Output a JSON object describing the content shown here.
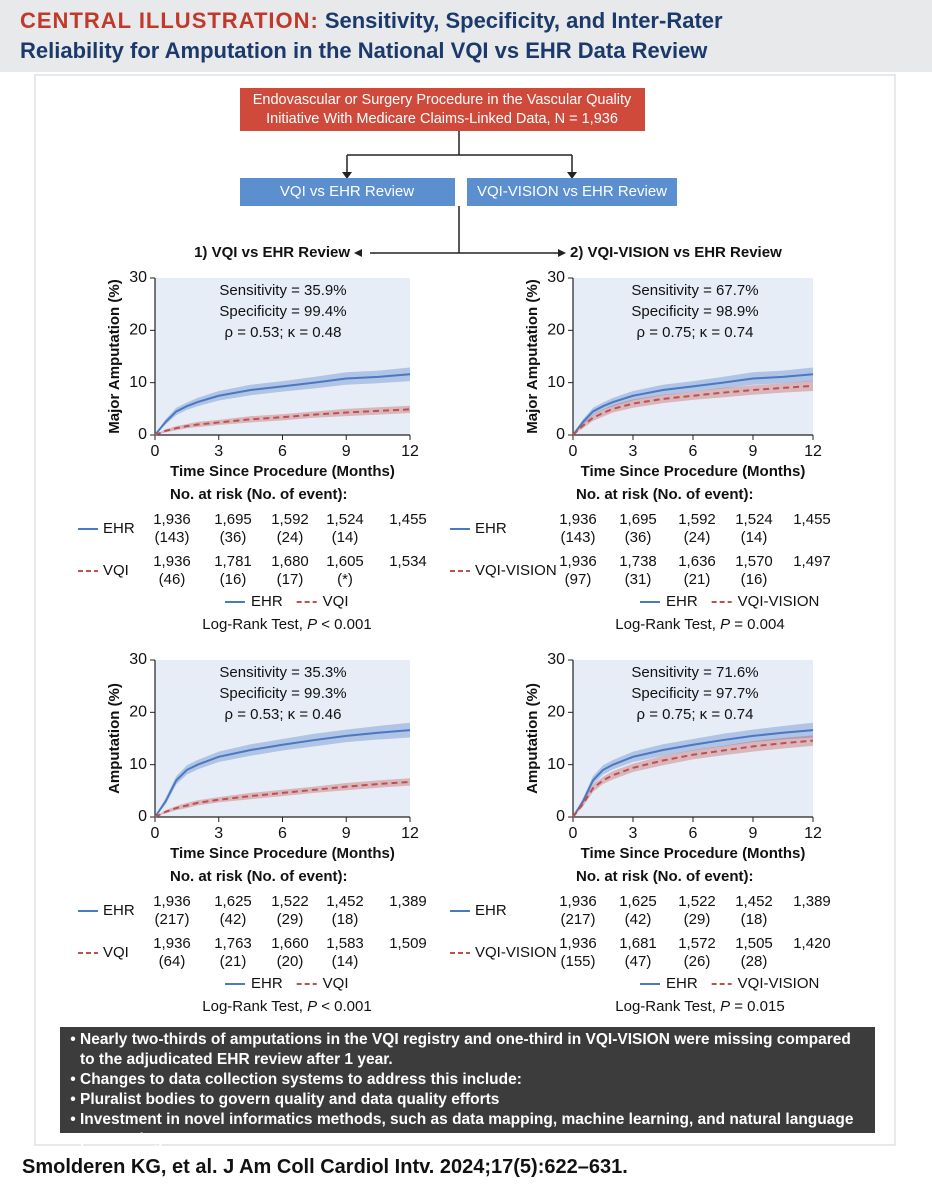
{
  "header": {
    "label": "CENTRAL ILLUSTRATION:",
    "title_lines": [
      "Sensitivity, Specificity, and Inter-Rater",
      "Reliability for Amputation in the National VQI vs EHR Data Review"
    ]
  },
  "flow": {
    "top_lines": [
      "Endovascular or Surgery Procedure in the Vascular Quality",
      "Initiative With Medicare Claims-Linked Data, N = 1,936"
    ],
    "boxes": [
      "VQI vs EHR Review",
      "VQI-VISION vs EHR Review"
    ],
    "sections": [
      "1) VQI vs EHR Review",
      "2) VQI-VISION vs EHR Review"
    ]
  },
  "chart_data": [
    {
      "type": "line",
      "y_label": "Major Amputation (%)",
      "x_label": "Time Since Procedure (Months)",
      "annotations": [
        "Sensitivity = 35.9%",
        "Specificity = 99.4%",
        "ρ = 0.53; κ = 0.48"
      ],
      "x": [
        0,
        0.5,
        1,
        1.5,
        2,
        3,
        4.5,
        6,
        7.5,
        9,
        10.5,
        12
      ],
      "xlim": [
        0,
        12
      ],
      "xticks": [
        0,
        3,
        6,
        9,
        12
      ],
      "ylim": [
        0,
        30
      ],
      "yticks": [
        0,
        10,
        20,
        30
      ],
      "series": [
        {
          "name": "EHR",
          "color": "#4a78c2",
          "dashed": false,
          "values": [
            0,
            2.5,
            4.5,
            5.5,
            6.3,
            7.5,
            8.6,
            9.3,
            10,
            10.8,
            11.1,
            11.6
          ],
          "lower": [
            0,
            2,
            3.8,
            4.8,
            5.5,
            6.6,
            7.6,
            8.3,
            8.9,
            9.6,
            9.9,
            10.3
          ],
          "upper": [
            0,
            3,
            5.2,
            6.2,
            7.1,
            8.4,
            9.6,
            10.3,
            11.1,
            12,
            12.3,
            12.9
          ]
        },
        {
          "name": "VQI",
          "color": "#c0504d",
          "dashed": true,
          "values": [
            0,
            0.8,
            1.3,
            1.7,
            2,
            2.4,
            3,
            3.4,
            3.9,
            4.3,
            4.6,
            4.9
          ],
          "lower": [
            0,
            0.5,
            0.9,
            1.3,
            1.5,
            1.9,
            2.4,
            2.8,
            3.3,
            3.6,
            3.9,
            4.2
          ],
          "upper": [
            0,
            1.1,
            1.7,
            2.1,
            2.5,
            2.9,
            3.6,
            4,
            4.5,
            5,
            5.3,
            5.6
          ]
        }
      ],
      "risk_table": {
        "title": "No. at risk (No. of event):",
        "rows": [
          {
            "at_risk": [
              "1,936",
              "1,695",
              "1,592",
              "1,524",
              "1,455"
            ],
            "events": [
              "(143)",
              "(36)",
              "(24)",
              "(14)"
            ]
          },
          {
            "at_risk": [
              "1,936",
              "1,781",
              "1,680",
              "1,605",
              "1,534"
            ],
            "events": [
              "(46)",
              "(16)",
              "(17)",
              "(*)"
            ]
          }
        ]
      },
      "test": {
        "text": "Log-Rank Test, ",
        "p": "P",
        "result": " < 0.001"
      }
    },
    {
      "type": "line",
      "y_label": "Major Amputation (%)",
      "x_label": "Time Since Procedure (Months)",
      "annotations": [
        "Sensitivity = 67.7%",
        "Specificity = 98.9%",
        "ρ = 0.75; κ = 0.74"
      ],
      "x": [
        0,
        0.5,
        1,
        1.5,
        2,
        3,
        4.5,
        6,
        7.5,
        9,
        10.5,
        12
      ],
      "xlim": [
        0,
        12
      ],
      "xticks": [
        0,
        3,
        6,
        9,
        12
      ],
      "ylim": [
        0,
        30
      ],
      "yticks": [
        0,
        10,
        20,
        30
      ],
      "series": [
        {
          "name": "EHR",
          "color": "#4a78c2",
          "dashed": false,
          "values": [
            0,
            2.5,
            4.5,
            5.5,
            6.3,
            7.5,
            8.6,
            9.3,
            10,
            10.8,
            11.1,
            11.6
          ],
          "lower": [
            0,
            2,
            3.8,
            4.8,
            5.5,
            6.6,
            7.6,
            8.3,
            8.9,
            9.6,
            9.9,
            10.3
          ],
          "upper": [
            0,
            3,
            5.2,
            6.2,
            7.1,
            8.4,
            9.6,
            10.3,
            11.1,
            12,
            12.3,
            12.9
          ]
        },
        {
          "name": "VQI-VISION",
          "color": "#c0504d",
          "dashed": true,
          "values": [
            0,
            1.8,
            3.3,
            4.2,
            5,
            6,
            6.9,
            7.5,
            8.1,
            8.6,
            9,
            9.4
          ],
          "lower": [
            0,
            1.3,
            2.7,
            3.5,
            4.3,
            5.2,
            6.1,
            6.7,
            7.2,
            7.7,
            8.1,
            8.4
          ],
          "upper": [
            0,
            2.3,
            3.9,
            4.9,
            5.7,
            6.8,
            7.7,
            8.3,
            9,
            9.5,
            9.9,
            10.4
          ]
        }
      ],
      "risk_table": {
        "title": "No. at risk (No. of event):",
        "rows": [
          {
            "at_risk": [
              "1,936",
              "1,695",
              "1,592",
              "1,524",
              "1,455"
            ],
            "events": [
              "(143)",
              "(36)",
              "(24)",
              "(14)"
            ]
          },
          {
            "at_risk": [
              "1,936",
              "1,738",
              "1,636",
              "1,570",
              "1,497"
            ],
            "events": [
              "(97)",
              "(31)",
              "(21)",
              "(16)"
            ]
          }
        ]
      },
      "test": {
        "text": "Log-Rank Test, ",
        "p": "P",
        "result": " = 0.004"
      }
    },
    {
      "type": "line",
      "y_label": "Amputation (%)",
      "x_label": "Time Since Procedure (Months)",
      "annotations": [
        "Sensitivity = 35.3%",
        "Specificity = 99.3%",
        "ρ = 0.53; κ = 0.46"
      ],
      "x": [
        0,
        0.5,
        1,
        1.5,
        2,
        3,
        4.5,
        6,
        7.5,
        9,
        10.5,
        12
      ],
      "xlim": [
        0,
        12
      ],
      "xticks": [
        0,
        3,
        6,
        9,
        12
      ],
      "ylim": [
        0,
        30
      ],
      "yticks": [
        0,
        10,
        20,
        30
      ],
      "series": [
        {
          "name": "EHR",
          "color": "#4a78c2",
          "dashed": false,
          "values": [
            0,
            3,
            7,
            9,
            10,
            11.5,
            12.8,
            13.8,
            14.7,
            15.5,
            16.1,
            16.6
          ],
          "lower": [
            0,
            2.4,
            6.2,
            8.1,
            9.1,
            10.5,
            11.7,
            12.7,
            13.5,
            14.3,
            14.8,
            15.2
          ],
          "upper": [
            0,
            3.6,
            7.8,
            9.9,
            10.9,
            12.5,
            13.9,
            14.9,
            15.9,
            16.7,
            17.4,
            18
          ]
        },
        {
          "name": "VQI",
          "color": "#c0504d",
          "dashed": true,
          "values": [
            0,
            1,
            1.7,
            2.2,
            2.7,
            3.3,
            4,
            4.6,
            5.2,
            5.8,
            6.3,
            6.7
          ],
          "lower": [
            0,
            0.7,
            1.3,
            1.7,
            2.2,
            2.8,
            3.4,
            4,
            4.6,
            5.1,
            5.6,
            6
          ],
          "upper": [
            0,
            1.3,
            2.1,
            2.7,
            3.2,
            3.8,
            4.6,
            5.2,
            5.8,
            6.5,
            7,
            7.4
          ]
        }
      ],
      "risk_table": {
        "title": "No. at risk (No. of event):",
        "rows": [
          {
            "at_risk": [
              "1,936",
              "1,625",
              "1,522",
              "1,452",
              "1,389"
            ],
            "events": [
              "(217)",
              "(42)",
              "(29)",
              "(18)"
            ]
          },
          {
            "at_risk": [
              "1,936",
              "1,763",
              "1,660",
              "1,583",
              "1,509"
            ],
            "events": [
              "(64)",
              "(21)",
              "(20)",
              "(14)"
            ]
          }
        ]
      },
      "test": {
        "text": "Log-Rank Test, ",
        "p": "P",
        "result": " < 0.001"
      }
    },
    {
      "type": "line",
      "y_label": "Amputation (%)",
      "x_label": "Time Since Procedure (Months)",
      "annotations": [
        "Sensitivity = 71.6%",
        "Specificity = 97.7%",
        "ρ = 0.75; κ = 0.74"
      ],
      "x": [
        0,
        0.5,
        1,
        1.5,
        2,
        3,
        4.5,
        6,
        7.5,
        9,
        10.5,
        12
      ],
      "xlim": [
        0,
        12
      ],
      "xticks": [
        0,
        3,
        6,
        9,
        12
      ],
      "ylim": [
        0,
        30
      ],
      "yticks": [
        0,
        10,
        20,
        30
      ],
      "series": [
        {
          "name": "EHR",
          "color": "#4a78c2",
          "dashed": false,
          "values": [
            0,
            3,
            7,
            9,
            10,
            11.5,
            12.8,
            13.8,
            14.7,
            15.5,
            16.1,
            16.6
          ],
          "lower": [
            0,
            2.4,
            6.2,
            8.1,
            9.1,
            10.5,
            11.7,
            12.7,
            13.5,
            14.3,
            14.8,
            15.2
          ],
          "upper": [
            0,
            3.6,
            7.8,
            9.9,
            10.9,
            12.5,
            13.9,
            14.9,
            15.9,
            16.7,
            17.4,
            18
          ]
        },
        {
          "name": "VQI-VISION",
          "color": "#c0504d",
          "dashed": true,
          "values": [
            0,
            2.5,
            5.5,
            7,
            8,
            9.4,
            10.8,
            11.9,
            12.7,
            13.5,
            14.1,
            14.6
          ],
          "lower": [
            0,
            2,
            4.8,
            6.3,
            7.2,
            8.6,
            9.9,
            11,
            11.8,
            12.5,
            13.1,
            13.6
          ],
          "upper": [
            0,
            3,
            6.2,
            7.7,
            8.8,
            10.2,
            11.7,
            12.8,
            13.6,
            14.5,
            15.1,
            15.6
          ]
        }
      ],
      "risk_table": {
        "title": "No. at risk (No. of event):",
        "rows": [
          {
            "at_risk": [
              "1,936",
              "1,625",
              "1,522",
              "1,452",
              "1,389"
            ],
            "events": [
              "(217)",
              "(42)",
              "(29)",
              "(18)"
            ]
          },
          {
            "at_risk": [
              "1,936",
              "1,681",
              "1,572",
              "1,505",
              "1,420"
            ],
            "events": [
              "(155)",
              "(47)",
              "(26)",
              "(28)"
            ]
          }
        ]
      },
      "test": {
        "text": "Log-Rank Test, ",
        "p": "P",
        "result": " = 0.015"
      }
    }
  ],
  "summary": [
    "Nearly two-thirds of amputations in the VQI registry and one-third in VQI-VISION were missing compared to the adjudicated EHR review after 1 year.",
    "Changes to data collection systems to address this include:",
    "Pluralist bodies to govern quality and data quality efforts",
    "Investment in novel informatics methods, such as data mapping, machine learning, and natural language processing"
  ],
  "citation": "Smolderen KG, et al. J Am Coll Cardiol Intv. 2024;17(5):622–631."
}
